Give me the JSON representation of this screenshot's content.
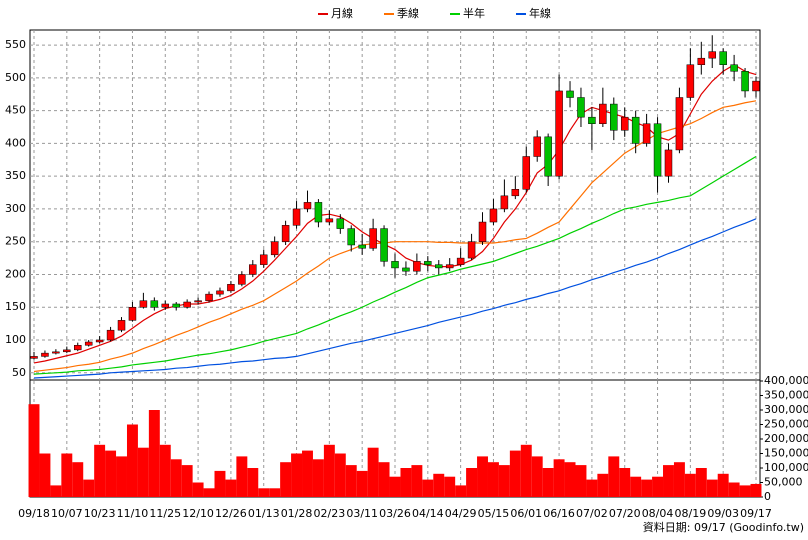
{
  "chart_data": {
    "type": "candlestick",
    "categories": [
      "09/18",
      null,
      null,
      "10/07",
      null,
      null,
      "10/23",
      null,
      null,
      "11/10",
      null,
      null,
      "11/25",
      null,
      null,
      "12/10",
      null,
      null,
      "12/26",
      null,
      null,
      "01/13",
      null,
      null,
      "01/28",
      null,
      null,
      "02/23",
      null,
      null,
      "03/11",
      null,
      null,
      "03/26",
      null,
      null,
      "04/14",
      null,
      null,
      "04/29",
      null,
      null,
      "05/15",
      null,
      null,
      "06/01",
      null,
      null,
      "06/16",
      null,
      null,
      "07/02",
      null,
      null,
      "07/20",
      null,
      null,
      "08/04",
      null,
      null,
      "08/19",
      null,
      null,
      "09/03",
      null,
      null,
      "09/17"
    ],
    "open": [
      72,
      75,
      80,
      82,
      85,
      92,
      97,
      100,
      115,
      130,
      150,
      160,
      150,
      155,
      150,
      158,
      160,
      170,
      175,
      185,
      200,
      215,
      230,
      250,
      275,
      300,
      310,
      280,
      285,
      270,
      245,
      240,
      270,
      220,
      210,
      205,
      220,
      215,
      210,
      215,
      225,
      250,
      280,
      300,
      320,
      330,
      380,
      410,
      350,
      480,
      470,
      440,
      430,
      460,
      420,
      440,
      400,
      430,
      350,
      390,
      470,
      520,
      530,
      540,
      520,
      510,
      480
    ],
    "high": [
      82,
      84,
      86,
      90,
      96,
      100,
      106,
      120,
      135,
      158,
      172,
      165,
      160,
      158,
      162,
      165,
      174,
      180,
      190,
      205,
      222,
      238,
      258,
      282,
      312,
      328,
      315,
      298,
      292,
      275,
      262,
      285,
      275,
      232,
      220,
      232,
      228,
      222,
      225,
      240,
      262,
      295,
      315,
      345,
      350,
      395,
      420,
      415,
      505,
      495,
      485,
      455,
      485,
      470,
      455,
      450,
      445,
      440,
      400,
      485,
      545,
      555,
      565,
      545,
      535,
      515,
      502
    ],
    "low": [
      70,
      73,
      78,
      80,
      83,
      90,
      95,
      98,
      112,
      128,
      148,
      145,
      146,
      145,
      148,
      154,
      157,
      166,
      172,
      182,
      196,
      210,
      226,
      245,
      270,
      295,
      272,
      275,
      262,
      235,
      230,
      236,
      212,
      195,
      198,
      200,
      205,
      200,
      205,
      212,
      222,
      245,
      275,
      295,
      315,
      325,
      372,
      335,
      345,
      455,
      425,
      390,
      425,
      405,
      410,
      385,
      395,
      325,
      340,
      385,
      465,
      505,
      515,
      505,
      495,
      470,
      470
    ],
    "close": [
      75,
      80,
      82,
      85,
      92,
      97,
      100,
      115,
      130,
      150,
      160,
      150,
      155,
      150,
      158,
      160,
      170,
      175,
      185,
      200,
      215,
      230,
      250,
      275,
      300,
      310,
      280,
      285,
      270,
      245,
      240,
      270,
      220,
      210,
      205,
      220,
      215,
      210,
      215,
      225,
      250,
      280,
      300,
      320,
      330,
      380,
      410,
      350,
      480,
      470,
      440,
      430,
      460,
      420,
      440,
      400,
      430,
      350,
      390,
      470,
      520,
      530,
      540,
      520,
      510,
      480,
      495
    ],
    "up_color": "#ff0000",
    "down_color": "#00c000",
    "ylim": [
      39,
      573
    ],
    "yticks": [
      50,
      100,
      150,
      200,
      250,
      300,
      350,
      400,
      450,
      500,
      550
    ],
    "grid": true,
    "legend_position": "top",
    "series": [
      {
        "name": "月線",
        "color": "#e00000",
        "values": [
          65,
          68,
          72,
          76,
          80,
          86,
          92,
          98,
          106,
          118,
          130,
          140,
          148,
          152,
          155,
          155,
          158,
          162,
          168,
          178,
          190,
          205,
          222,
          240,
          258,
          278,
          290,
          292,
          288,
          278,
          265,
          255,
          246,
          238,
          225,
          218,
          214,
          212,
          212,
          215,
          222,
          235,
          255,
          280,
          300,
          325,
          355,
          368,
          390,
          420,
          445,
          455,
          450,
          445,
          440,
          432,
          425,
          410,
          405,
          415,
          445,
          475,
          495,
          510,
          520,
          510,
          505
        ]
      },
      {
        "name": "季線",
        "color": "#ff7000",
        "values": [
          52,
          54,
          56,
          58,
          61,
          63,
          66,
          71,
          75,
          80,
          87,
          93,
          100,
          107,
          113,
          120,
          127,
          133,
          140,
          147,
          153,
          160,
          170,
          180,
          190,
          202,
          213,
          225,
          232,
          238,
          245,
          247,
          248,
          250,
          250,
          250,
          250,
          249,
          249,
          248,
          248,
          248,
          248,
          250,
          253,
          255,
          263,
          272,
          280,
          300,
          320,
          340,
          355,
          370,
          385,
          395,
          405,
          415,
          420,
          425,
          430,
          438,
          447,
          455,
          458,
          462,
          465
        ]
      },
      {
        "name": "半年",
        "color": "#00d000",
        "values": [
          48,
          49,
          50,
          51,
          53,
          54,
          55,
          57,
          59,
          62,
          64,
          66,
          68,
          71,
          74,
          77,
          79,
          82,
          85,
          89,
          93,
          98,
          102,
          106,
          110,
          117,
          123,
          130,
          137,
          143,
          150,
          158,
          165,
          173,
          180,
          188,
          195,
          199,
          203,
          208,
          212,
          216,
          220,
          226,
          232,
          238,
          243,
          249,
          255,
          263,
          270,
          278,
          285,
          293,
          300,
          303,
          307,
          310,
          313,
          317,
          320,
          330,
          340,
          350,
          360,
          370,
          380
        ]
      },
      {
        "name": "年線",
        "color": "#0050e0",
        "values": [
          42,
          43,
          44,
          45,
          46,
          47,
          48,
          50,
          51,
          52,
          53,
          54,
          55,
          57,
          58,
          60,
          62,
          63,
          65,
          67,
          68,
          70,
          72,
          73,
          75,
          79,
          83,
          87,
          91,
          95,
          98,
          102,
          106,
          110,
          114,
          118,
          122,
          127,
          131,
          135,
          139,
          144,
          148,
          153,
          157,
          162,
          166,
          171,
          175,
          181,
          186,
          192,
          197,
          203,
          208,
          214,
          219,
          225,
          232,
          238,
          245,
          252,
          258,
          265,
          272,
          278,
          285
        ]
      }
    ],
    "volume": {
      "color": "#ff0000",
      "values": [
        320000,
        150000,
        40000,
        150000,
        120000,
        60000,
        180000,
        160000,
        140000,
        250000,
        170000,
        300000,
        180000,
        130000,
        110000,
        50000,
        30000,
        90000,
        60000,
        140000,
        100000,
        30000,
        30000,
        120000,
        150000,
        160000,
        130000,
        180000,
        150000,
        110000,
        90000,
        170000,
        120000,
        70000,
        100000,
        110000,
        60000,
        80000,
        70000,
        40000,
        100000,
        140000,
        120000,
        110000,
        160000,
        180000,
        140000,
        100000,
        130000,
        120000,
        110000,
        60000,
        80000,
        140000,
        100000,
        70000,
        60000,
        70000,
        110000,
        120000,
        80000,
        100000,
        60000,
        80000,
        50000,
        40000,
        45000
      ],
      "ylim": [
        0,
        400000
      ],
      "yticks": [
        0,
        {
          "value": 50000,
          "label": "50,000"
        },
        {
          "value": 100000,
          "label": "100,000"
        },
        {
          "value": 150000,
          "label": "150,000"
        },
        {
          "value": 200000,
          "label": "200,000"
        },
        {
          "value": 250000,
          "label": "250,000"
        },
        {
          "value": 300000,
          "label": "300,000"
        },
        {
          "value": 350000,
          "label": "350,000"
        },
        {
          "value": 400000,
          "label": "400,000"
        }
      ]
    },
    "source": "資料日期: 09/17 (Goodinfo.tw)"
  }
}
